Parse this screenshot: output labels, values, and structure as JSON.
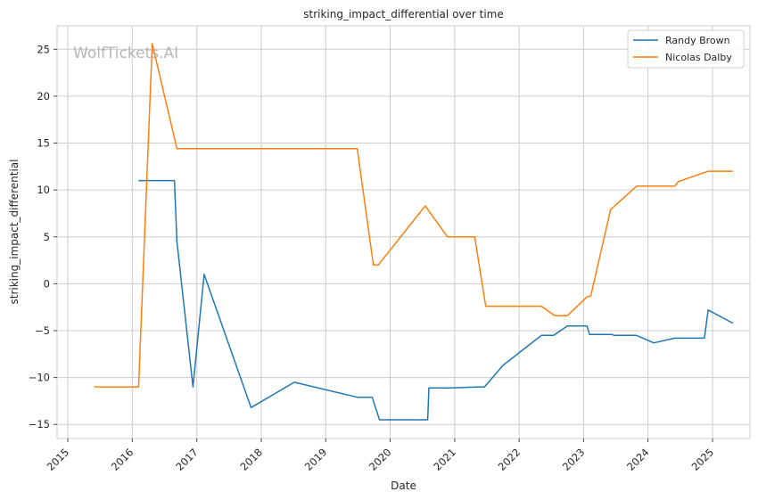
{
  "chart_data": {
    "type": "line",
    "title": "striking_impact_differential over time",
    "xlabel": "Date",
    "ylabel": "striking_impact_differential",
    "watermark": "WolfTickets.AI",
    "x_axis_type": "date",
    "xlim": [
      "2014-11-01",
      "2025-08-01"
    ],
    "ylim": [
      -16.5,
      27.5
    ],
    "x_ticks": [
      "2015",
      "2016",
      "2017",
      "2018",
      "2019",
      "2020",
      "2021",
      "2022",
      "2023",
      "2024",
      "2025"
    ],
    "y_ticks": [
      -15,
      -10,
      -5,
      0,
      5,
      10,
      15,
      20,
      25
    ],
    "y_tick_labels": [
      "−15",
      "−10",
      "−5",
      "0",
      "5",
      "10",
      "15",
      "20",
      "25"
    ],
    "grid": true,
    "legend_position": "top-right",
    "series": [
      {
        "name": "Randy Brown",
        "color": "#1f77b4",
        "points": [
          [
            "2016-02-06",
            11.0
          ],
          [
            "2016-08-27",
            11.0
          ],
          [
            "2016-09-10",
            4.5
          ],
          [
            "2016-12-10",
            -11.0
          ],
          [
            "2017-02-11",
            1.0
          ],
          [
            "2017-11-04",
            -13.2
          ],
          [
            "2018-07-07",
            -10.5
          ],
          [
            "2019-06-29",
            -12.1
          ],
          [
            "2019-09-21",
            -12.1
          ],
          [
            "2019-11-02",
            -14.5
          ],
          [
            "2020-08-01",
            -14.5
          ],
          [
            "2020-08-08",
            -11.1
          ],
          [
            "2020-12-05",
            -11.1
          ],
          [
            "2021-05-22",
            -11.0
          ],
          [
            "2021-06-19",
            -11.0
          ],
          [
            "2021-10-02",
            -8.7
          ],
          [
            "2022-05-07",
            -5.5
          ],
          [
            "2022-07-16",
            -5.5
          ],
          [
            "2022-10-01",
            -4.5
          ],
          [
            "2023-01-21",
            -4.5
          ],
          [
            "2023-02-04",
            -5.4
          ],
          [
            "2023-06-10",
            -5.4
          ],
          [
            "2023-06-24",
            -5.5
          ],
          [
            "2023-10-28",
            -5.5
          ],
          [
            "2024-02-03",
            -6.3
          ],
          [
            "2024-06-01",
            -5.8
          ],
          [
            "2024-11-16",
            -5.8
          ],
          [
            "2024-12-07",
            -2.8
          ],
          [
            "2025-04-26",
            -4.2
          ]
        ]
      },
      {
        "name": "Nicolas Dalby",
        "color": "#ff7f0e",
        "points": [
          [
            "2015-05-30",
            -11.0
          ],
          [
            "2016-02-06",
            -11.0
          ],
          [
            "2016-04-23",
            25.6
          ],
          [
            "2016-09-10",
            14.4
          ],
          [
            "2019-06-29",
            14.4
          ],
          [
            "2019-09-28",
            2.0
          ],
          [
            "2019-10-26",
            2.0
          ],
          [
            "2020-07-18",
            8.3
          ],
          [
            "2020-11-21",
            5.0
          ],
          [
            "2021-04-24",
            5.0
          ],
          [
            "2021-06-26",
            -2.4
          ],
          [
            "2022-05-07",
            -2.4
          ],
          [
            "2022-07-23",
            -3.4
          ],
          [
            "2022-10-01",
            -3.4
          ],
          [
            "2023-01-21",
            -1.4
          ],
          [
            "2023-02-11",
            -1.3
          ],
          [
            "2023-06-03",
            7.9
          ],
          [
            "2023-10-28",
            10.4
          ],
          [
            "2024-06-01",
            10.4
          ],
          [
            "2024-06-22",
            10.9
          ],
          [
            "2024-12-07",
            12.0
          ],
          [
            "2025-04-26",
            12.0
          ]
        ]
      }
    ]
  }
}
